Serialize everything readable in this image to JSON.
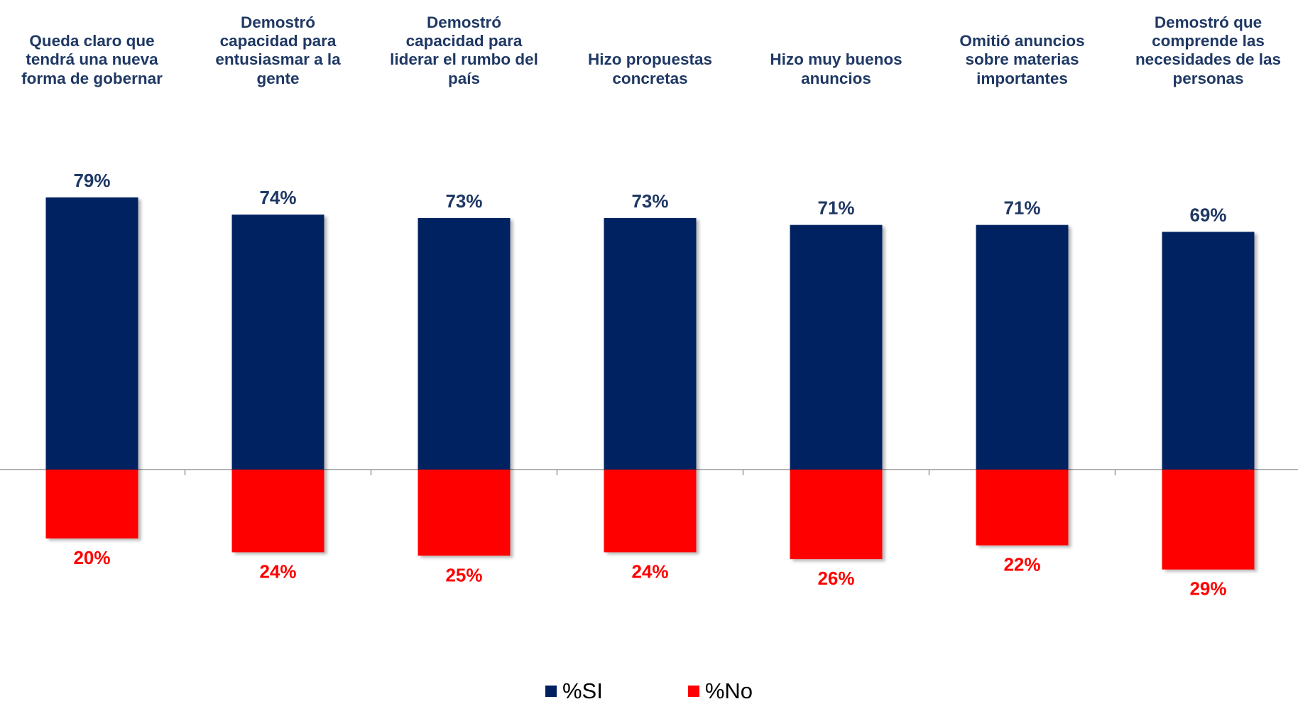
{
  "chart_data": {
    "type": "bar",
    "categories": [
      "Queda claro que\ntendrá una nueva\nforma de gobernar",
      "Demostró\ncapacidad para\nentusiasmar a la\ngente",
      "Demostró\ncapacidad  para\nliderar el rumbo del\npaís",
      "Hizo propuestas\nconcretas",
      "Hizo muy buenos\nanuncios",
      "Omitió anuncios\nsobre materias\nimportantes",
      "Demostró que\ncomprende las\nnecesidades de las\npersonas"
    ],
    "series": [
      {
        "name": "%SI",
        "color": "#002060",
        "values": [
          79,
          74,
          73,
          73,
          71,
          71,
          69
        ],
        "labels": [
          "79%",
          "74%",
          "73%",
          "73%",
          "71%",
          "71%",
          "69%"
        ]
      },
      {
        "name": "%No",
        "color": "#ff0000",
        "values": [
          20,
          24,
          25,
          24,
          26,
          22,
          29
        ],
        "labels": [
          "20%",
          "24%",
          "25%",
          "24%",
          "26%",
          "22%",
          "29%"
        ]
      }
    ],
    "direction": "diverging",
    "axis": "hidden",
    "legend_position": "bottom-center"
  }
}
